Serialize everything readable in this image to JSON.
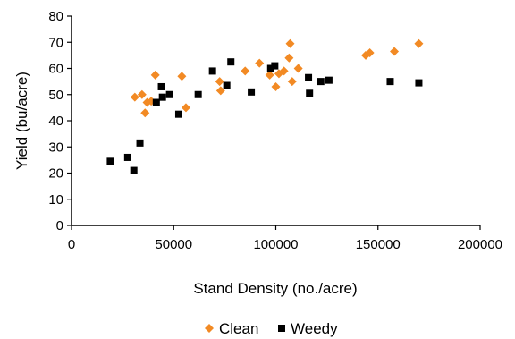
{
  "chart_data": {
    "type": "scatter",
    "xlabel": "Stand Density (no./acre)",
    "ylabel": "Yield (bu/acre)",
    "xlim": [
      0,
      200000
    ],
    "ylim": [
      0,
      80
    ],
    "x_ticks": [
      "0",
      "50000",
      "100000",
      "150000",
      "200000"
    ],
    "y_ticks": [
      "0",
      "10",
      "20",
      "30",
      "40",
      "50",
      "60",
      "70",
      "80"
    ],
    "grid": false,
    "legend_position": "bottom",
    "series": [
      {
        "name": "Clean",
        "marker": "diamond",
        "color": "#f28a24",
        "points": [
          [
            31000,
            49
          ],
          [
            34500,
            50
          ],
          [
            36000,
            43
          ],
          [
            37000,
            47
          ],
          [
            39000,
            47.5
          ],
          [
            41000,
            57.5
          ],
          [
            54000,
            57
          ],
          [
            56000,
            45
          ],
          [
            72500,
            55
          ],
          [
            73000,
            51.5
          ],
          [
            85000,
            59
          ],
          [
            92000,
            62
          ],
          [
            97000,
            57.5
          ],
          [
            100000,
            53
          ],
          [
            101500,
            58
          ],
          [
            104000,
            59
          ],
          [
            106500,
            64
          ],
          [
            107000,
            69.5
          ],
          [
            108000,
            55
          ],
          [
            111000,
            60
          ],
          [
            144000,
            65
          ],
          [
            146000,
            66
          ],
          [
            158000,
            66.5
          ],
          [
            170000,
            69.5
          ]
        ]
      },
      {
        "name": "Weedy",
        "marker": "square",
        "color": "#000000",
        "points": [
          [
            19000,
            24.5
          ],
          [
            27500,
            26
          ],
          [
            30500,
            21
          ],
          [
            33500,
            31.5
          ],
          [
            41500,
            47
          ],
          [
            44000,
            53
          ],
          [
            44500,
            49
          ],
          [
            48000,
            50
          ],
          [
            52500,
            42.5
          ],
          [
            62000,
            50
          ],
          [
            69000,
            59
          ],
          [
            76000,
            53.5
          ],
          [
            78000,
            62.5
          ],
          [
            88000,
            51
          ],
          [
            97500,
            60
          ],
          [
            99500,
            61
          ],
          [
            116000,
            56.5
          ],
          [
            116500,
            50.5
          ],
          [
            122000,
            55
          ],
          [
            126000,
            55.5
          ],
          [
            156000,
            55
          ],
          [
            170000,
            54.5
          ]
        ]
      }
    ]
  }
}
